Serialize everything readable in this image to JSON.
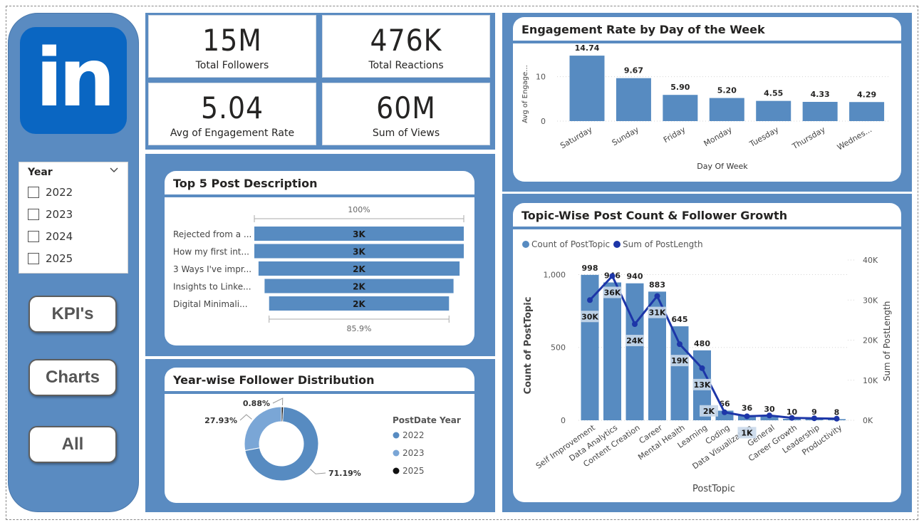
{
  "sidebar": {
    "logo_text": "in",
    "slicer": {
      "title": "Year",
      "items": [
        {
          "label": "2022",
          "checked": false
        },
        {
          "label": "2023",
          "checked": false
        },
        {
          "label": "2024",
          "checked": false
        },
        {
          "label": "2025",
          "checked": false
        }
      ]
    },
    "buttons": [
      {
        "label": "KPI's"
      },
      {
        "label": "Charts"
      },
      {
        "label": "All"
      }
    ]
  },
  "kpis": [
    {
      "value": "15M",
      "label": "Total Followers"
    },
    {
      "value": "476K",
      "label": "Total Reactions"
    },
    {
      "value": "5.04",
      "label": "Avg of Engagement Rate"
    },
    {
      "value": "60M",
      "label": "Sum of Views"
    }
  ],
  "colors": {
    "accent": "#5a8bc1",
    "bar": "#578bc1",
    "line": "#1d36a8",
    "slice_2022": "#578bc1",
    "slice_2023": "#7aa6d6",
    "slice_2025": "#111111",
    "logo": "#0a66c2"
  },
  "charts": {
    "funnel": {
      "title": "Top 5 Post Description",
      "top_label": "100%",
      "bottom_label": "85.9%"
    },
    "donut": {
      "title": "Year-wise Follower Distribution",
      "legend_title": "PostDate Year"
    },
    "engagement": {
      "title": "Engagement Rate by Day of the Week"
    },
    "topic": {
      "title": "Topic-Wise Post Count & Follower Growth"
    }
  },
  "chart_data": [
    {
      "type": "bar",
      "orientation": "horizontal-funnel",
      "title": "Top 5 Post Description",
      "categories": [
        "Rejected from a ...",
        "How my first int...",
        "3 Ways I've impr...",
        "Insights to Linke...",
        "Digital Minimali..."
      ],
      "values": [
        3000,
        3000,
        2000,
        2000,
        2000
      ],
      "data_labels": [
        "3K",
        "3K",
        "2K",
        "2K",
        "2K"
      ],
      "relative_values": [
        1.0,
        1.0,
        0.96,
        0.902,
        0.859
      ],
      "top_label": "100%",
      "bottom_label": "85.9%"
    },
    {
      "type": "pie",
      "donut": true,
      "title": "Year-wise Follower Distribution",
      "legend_title": "PostDate Year",
      "legend_position": "right",
      "labels": [
        "2022",
        "2023",
        "2025"
      ],
      "values": [
        71.19,
        27.93,
        0.88
      ],
      "data_labels": [
        "71.19%",
        "27.93%",
        "0.88%"
      ]
    },
    {
      "type": "bar",
      "title": "Engagement Rate by Day of the Week",
      "xlabel": "Day Of Week",
      "ylabel": "Avg of Engage...",
      "categories": [
        "Saturday",
        "Sunday",
        "Friday",
        "Monday",
        "Tuesday",
        "Thursday",
        "Wednes..."
      ],
      "values": [
        14.74,
        9.67,
        5.9,
        5.2,
        4.55,
        4.33,
        4.29
      ],
      "data_labels": [
        "14.74",
        "9.67",
        "5.90",
        "5.20",
        "4.55",
        "4.33",
        "4.29"
      ],
      "yticks": [
        "0",
        "10"
      ],
      "ylim": [
        0,
        17
      ],
      "grid": true
    },
    {
      "type": "bar",
      "combo": "bar+line",
      "title": "Topic-Wise Post Count & Follower Growth",
      "xlabel": "PostTopic",
      "ylabel": "Count of PostTopic",
      "y2label": "Sum of PostLength",
      "legend_position": "top-left",
      "categories": [
        "Self Improvement",
        "Data Analytics",
        "Content Creation",
        "Career",
        "Mental Health",
        "Learning",
        "Coding",
        "Data Visualization",
        "General",
        "Career Growth",
        "Leadership",
        "Productivity"
      ],
      "series": [
        {
          "name": "Count of PostTopic",
          "axis": "left",
          "kind": "bar",
          "values": [
            998,
            946,
            940,
            883,
            645,
            480,
            66,
            36,
            30,
            10,
            9,
            8
          ],
          "data_labels": [
            "998",
            "946",
            "940",
            "883",
            "645",
            "480",
            "66",
            "36",
            "30",
            "10",
            "9",
            "8"
          ]
        },
        {
          "name": "Sum of PostLength",
          "axis": "right",
          "kind": "line",
          "values": [
            30000,
            36000,
            24000,
            31000,
            19000,
            13000,
            2000,
            1000,
            1200,
            600,
            500,
            400
          ],
          "data_labels": [
            "30K",
            "36K",
            "24K",
            "31K",
            "19K",
            "13K",
            "2K",
            "1K",
            "",
            "",
            "",
            ""
          ]
        }
      ],
      "yticks": [
        "0",
        "500",
        "1,000"
      ],
      "y2ticks": [
        "0K",
        "10K",
        "20K",
        "30K",
        "40K"
      ],
      "ylim": [
        0,
        1100
      ],
      "y2lim": [
        0,
        40000
      ],
      "grid": true
    }
  ]
}
